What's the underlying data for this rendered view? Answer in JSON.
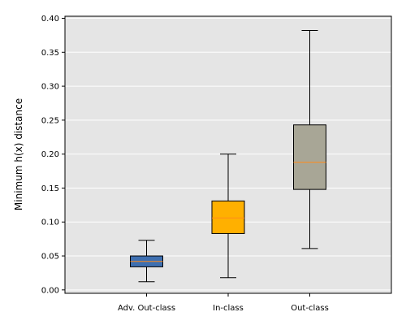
{
  "chart_data": {
    "type": "box",
    "title": "",
    "xlabel": "",
    "ylabel": "Minimum h(x) distance",
    "ylim": [
      -0.005,
      0.403
    ],
    "y_ticks": [
      0.0,
      0.05,
      0.1,
      0.15,
      0.2,
      0.25,
      0.3,
      0.35,
      0.4
    ],
    "y_tick_labels": [
      "0.00",
      "0.05",
      "0.10",
      "0.15",
      "0.20",
      "0.25",
      "0.30",
      "0.35",
      "0.40"
    ],
    "grid": true,
    "categories": [
      "Adv. Out-class",
      "In-class",
      "Out-class"
    ],
    "boxes": [
      {
        "category": "Adv. Out-class",
        "whisker_low": 0.012,
        "q1": 0.034,
        "median": 0.042,
        "q3": 0.05,
        "whisker_high": 0.073,
        "color": "#3e6fb0"
      },
      {
        "category": "In-class",
        "whisker_low": 0.018,
        "q1": 0.083,
        "median": 0.106,
        "q3": 0.131,
        "whisker_high": 0.2,
        "color": "#ffb000"
      },
      {
        "category": "Out-class",
        "whisker_low": 0.061,
        "q1": 0.148,
        "median": 0.188,
        "q3": 0.243,
        "whisker_high": 0.382,
        "color": "#a8a696"
      }
    ],
    "median_color": "#ff8c1a",
    "background_color": "#e5e5e5",
    "grid_color": "#ffffff"
  }
}
